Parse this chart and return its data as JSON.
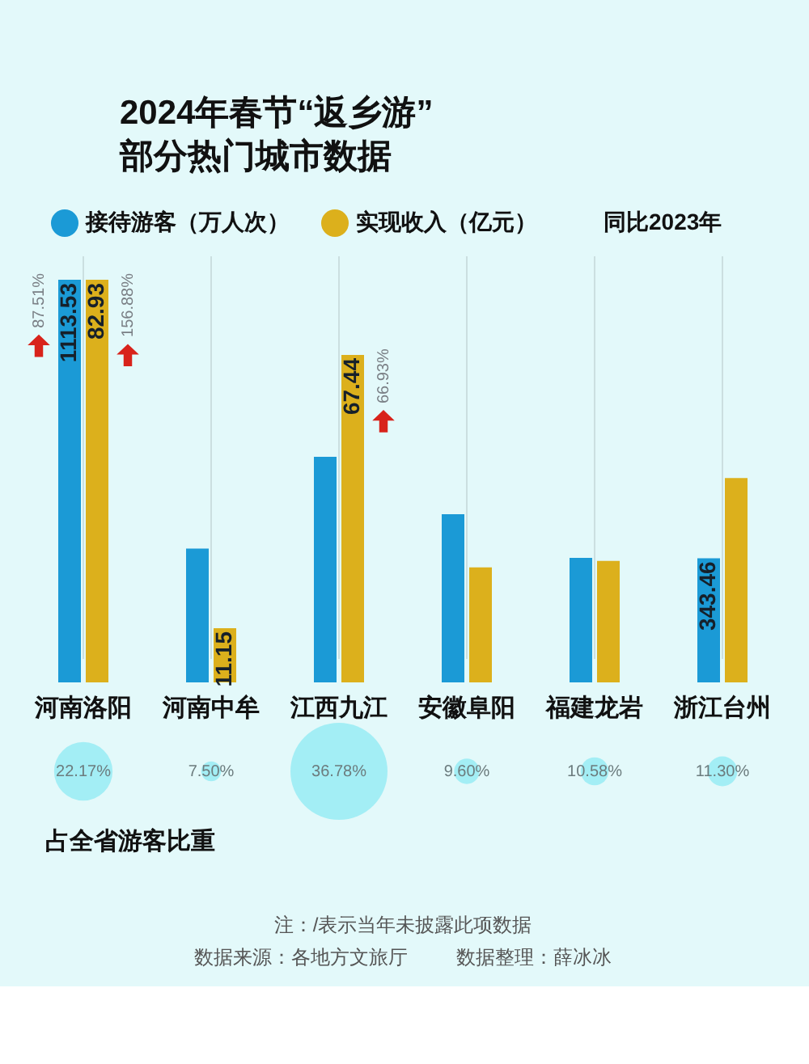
{
  "chart_data": [
    {
      "type": "bar",
      "title": "2024年春节“返乡游”\n部分热门城市数据",
      "categories": [
        "河南洛阳",
        "河南中牟",
        "江西九江",
        "安徽阜阳",
        "福建龙岩",
        "浙江台州"
      ],
      "series": [
        {
          "name": "接待游客（万人次）",
          "color": "#1b9ad6",
          "values": [
            1113.53,
            370,
            624,
            465,
            344.5,
            343.46
          ],
          "value_labels": [
            "1113.53",
            null,
            null,
            null,
            null,
            "343.46"
          ]
        },
        {
          "name": "实现收入（亿元）",
          "color": "#dcb01c",
          "axis": "y2",
          "values": [
            82.93,
            11.15,
            67.44,
            23.7,
            25,
            42.1
          ],
          "value_labels": [
            "82.93",
            "11.15",
            "67.44",
            null,
            null,
            null
          ]
        }
      ],
      "legend": "top",
      "grid": "x",
      "tick_labels": "x",
      "annotations": [
        "同比2023年",
        {
          "text": "87.51%",
          "x": "河南洛阳",
          "y": 1113.53
        },
        {
          "text": "156.88%",
          "x": "河南洛阳",
          "y": 1113.53
        },
        {
          "text": "66.93%",
          "x": "江西九江",
          "y": 905
        }
      ]
    },
    {
      "type": "other",
      "title": "占全省游客比重",
      "values": [
        22.17,
        7.5,
        36.78,
        9.6,
        10.58,
        11.3
      ],
      "value_labels": [
        "22.17%",
        "7.50%",
        "36.78%",
        "9.60%",
        "10.58%",
        "11.30%"
      ],
      "color": "#a3eef5",
      "annotations": [
        "注：/表示当年未披露此项数据",
        "数据来源：各地方文旅厅",
        "数据整理：薛冰冰"
      ]
    }
  ]
}
